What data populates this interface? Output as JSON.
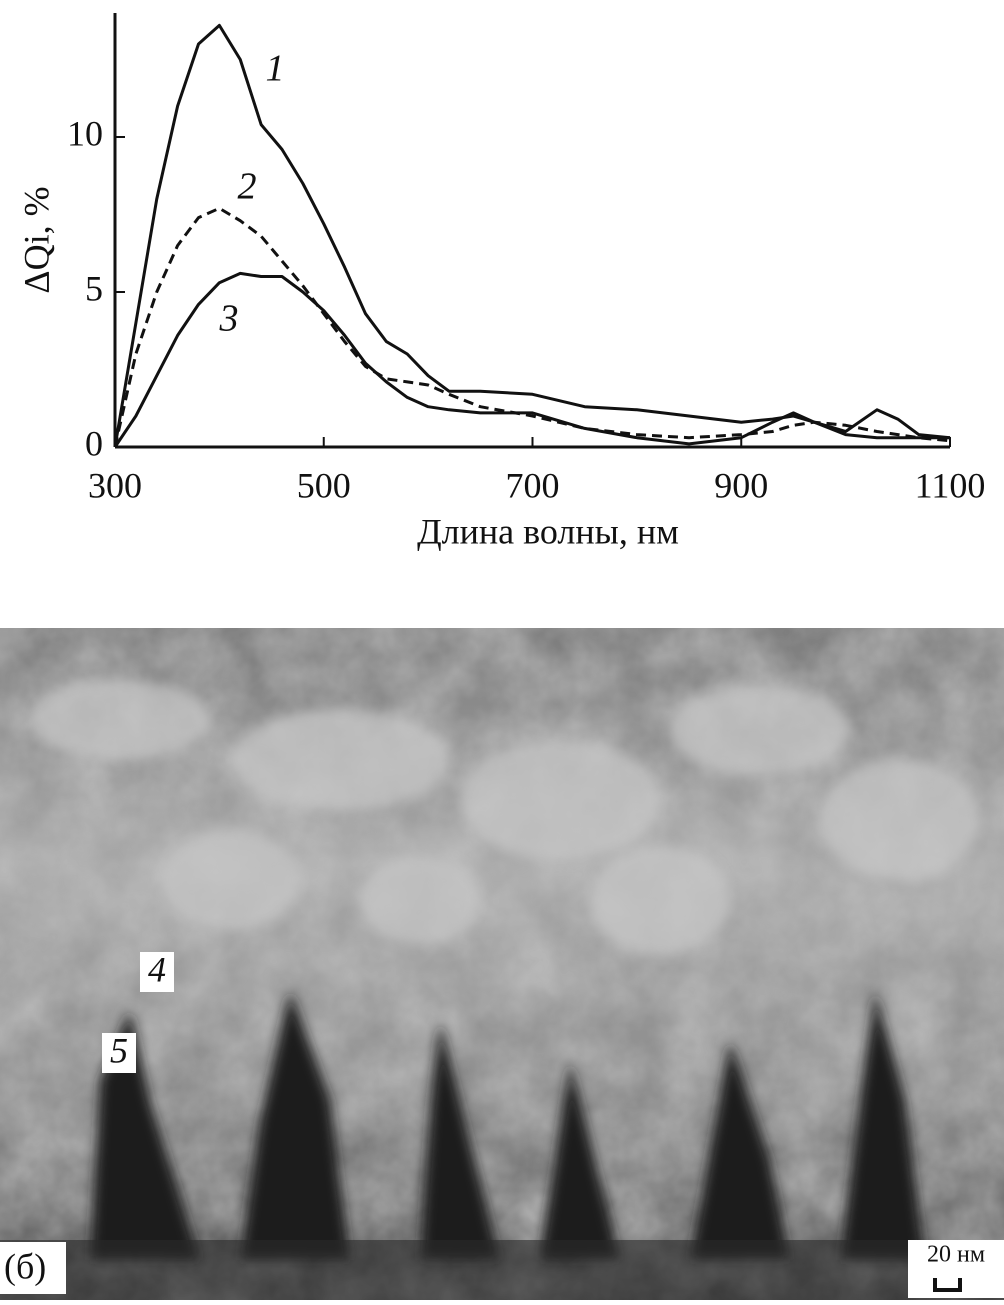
{
  "chart_data": {
    "type": "line",
    "xlabel": "Длина волны, нм",
    "ylabel": "ΔQi, %",
    "x": [
      300,
      320,
      340,
      360,
      380,
      400,
      420,
      440,
      460,
      480,
      500,
      520,
      540,
      560,
      580,
      600,
      620,
      650,
      700,
      750,
      800,
      850,
      900,
      930,
      950,
      970,
      1000,
      1030,
      1050,
      1070,
      1100
    ],
    "series": [
      {
        "name": "1",
        "color": "#111111",
        "style": "solid",
        "values": [
          0,
          4,
          8,
          11,
          13,
          13.6,
          12.5,
          10.4,
          9.6,
          8.5,
          7.2,
          5.8,
          4.3,
          3.4,
          3.0,
          2.3,
          1.8,
          1.8,
          1.7,
          1.3,
          1.2,
          1.0,
          0.8,
          0.9,
          1.0,
          0.8,
          0.5,
          1.2,
          0.9,
          0.4,
          0.3
        ]
      },
      {
        "name": "2",
        "color": "#111111",
        "style": "dashed",
        "values": [
          0,
          3,
          5,
          6.5,
          7.4,
          7.7,
          7.3,
          6.8,
          6.0,
          5.2,
          4.3,
          3.4,
          2.6,
          2.2,
          2.1,
          2.0,
          1.7,
          1.3,
          1.0,
          0.6,
          0.4,
          0.3,
          0.4,
          0.5,
          0.7,
          0.8,
          0.7,
          0.5,
          0.4,
          0.3,
          0.2
        ]
      },
      {
        "name": "3",
        "color": "#111111",
        "style": "solid",
        "values": [
          0,
          1,
          2.3,
          3.6,
          4.6,
          5.3,
          5.6,
          5.5,
          5.5,
          5.0,
          4.4,
          3.6,
          2.7,
          2.1,
          1.6,
          1.3,
          1.2,
          1.1,
          1.1,
          0.6,
          0.3,
          0.1,
          0.3,
          0.8,
          1.1,
          0.8,
          0.4,
          0.3,
          0.3,
          0.3,
          0.3
        ]
      }
    ],
    "xlim": [
      300,
      1100
    ],
    "xticks": [
      300,
      500,
      700,
      900,
      1100
    ],
    "ylim": [
      0,
      14
    ],
    "yticks": [
      0,
      5,
      10
    ],
    "grid": false
  },
  "image": {
    "labels": [
      "4",
      "5"
    ],
    "panel_label": "(б)",
    "scale_bar": "20 нм"
  }
}
